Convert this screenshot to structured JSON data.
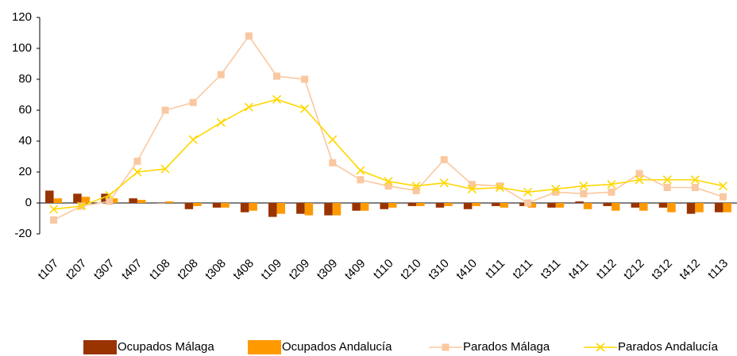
{
  "chart_data": {
    "type": "bar_line",
    "categories": [
      "t107",
      "t207",
      "t307",
      "t407",
      "t108",
      "t208",
      "t308",
      "t408",
      "t109",
      "t209",
      "t309",
      "t409",
      "t110",
      "t210",
      "t310",
      "t410",
      "t111",
      "t211",
      "t311",
      "t411",
      "t112",
      "t212",
      "t312",
      "t412",
      "t113"
    ],
    "series": [
      {
        "name": "Ocupados Málaga",
        "type": "bar",
        "color": "#993300",
        "values": [
          8,
          6,
          6,
          3,
          0,
          -4,
          -3,
          -6,
          -9,
          -7,
          -8,
          -5,
          -4,
          -2,
          -3,
          -4,
          -2,
          -2,
          -3,
          1,
          -2,
          -3,
          -3,
          -7,
          -6
        ]
      },
      {
        "name": "Ocupados Andalucía",
        "type": "bar",
        "color": "#ff9900",
        "values": [
          3,
          4,
          3,
          2,
          1,
          -2,
          -3,
          -5,
          -7,
          -8,
          -8,
          -5,
          -3,
          -2,
          -2,
          -2,
          -3,
          -3,
          -3,
          -4,
          -5,
          -5,
          -6,
          -6,
          -6
        ]
      },
      {
        "name": "Parados Málaga",
        "type": "line",
        "marker": "square",
        "color": "#fac8a0",
        "values": [
          -11,
          -2,
          1,
          27,
          60,
          65,
          83,
          108,
          82,
          80,
          26,
          15,
          11,
          8,
          28,
          12,
          11,
          0,
          7,
          6,
          7,
          19,
          10,
          10,
          4
        ]
      },
      {
        "name": "Parados Andalucía",
        "type": "line",
        "marker": "x",
        "color": "#ffd700",
        "values": [
          -4,
          -2,
          5,
          20,
          22,
          41,
          52,
          62,
          67,
          61,
          41,
          21,
          14,
          11,
          13,
          9,
          10,
          7,
          9,
          11,
          12,
          15,
          15,
          15,
          11
        ]
      }
    ],
    "ylim": [
      -20,
      120
    ],
    "yticks": [
      -20,
      0,
      20,
      40,
      60,
      80,
      100,
      120
    ],
    "grid": false,
    "legend": "bottom"
  }
}
